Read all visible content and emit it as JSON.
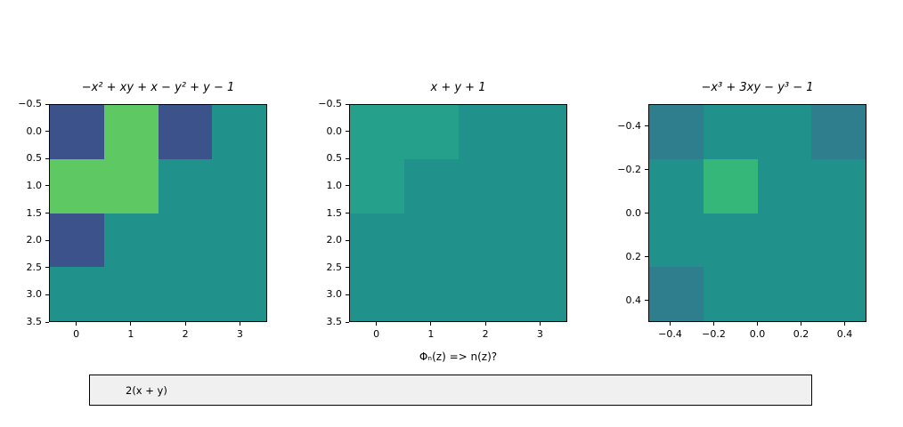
{
  "figure": {
    "background": "#ffffff"
  },
  "colors": {
    "teal": "#21918c",
    "darkblue": "#3b528b",
    "green": "#5ec962",
    "lightteal": "#25a08a",
    "darkteal": "#2e7e8e",
    "midgreen": "#35b779"
  },
  "textbox": {
    "value": "2(x + y)"
  },
  "chart_data": [
    {
      "type": "heatmap",
      "title": "−x² + xy + x − y² + y − 1",
      "xlabel": "",
      "x_range": [
        -0.5,
        3.5
      ],
      "y_range": [
        -0.5,
        3.5
      ],
      "y_axis_inverted": true,
      "grid": [
        [
          "darkblue",
          "green",
          "darkblue",
          "teal"
        ],
        [
          "green",
          "green",
          "teal",
          "teal"
        ],
        [
          "darkblue",
          "teal",
          "teal",
          "teal"
        ],
        [
          "teal",
          "teal",
          "teal",
          "teal"
        ]
      ],
      "x_ticks": [
        {
          "label": "0",
          "pos": 0.125
        },
        {
          "label": "1",
          "pos": 0.375
        },
        {
          "label": "2",
          "pos": 0.625
        },
        {
          "label": "3",
          "pos": 0.875
        }
      ],
      "y_ticks": [
        {
          "label": "−0.5",
          "pos": 0
        },
        {
          "label": "0.0",
          "pos": 0.125
        },
        {
          "label": "0.5",
          "pos": 0.25
        },
        {
          "label": "1.0",
          "pos": 0.375
        },
        {
          "label": "1.5",
          "pos": 0.5
        },
        {
          "label": "2.0",
          "pos": 0.625
        },
        {
          "label": "2.5",
          "pos": 0.75
        },
        {
          "label": "3.0",
          "pos": 0.875
        },
        {
          "label": "3.5",
          "pos": 1
        }
      ]
    },
    {
      "type": "heatmap",
      "title": "x + y + 1",
      "xlabel": "Φₙ(z) => n(z)?",
      "x_range": [
        -0.5,
        3.5
      ],
      "y_range": [
        -0.5,
        3.5
      ],
      "y_axis_inverted": true,
      "grid": [
        [
          "lightteal",
          "lightteal",
          "teal",
          "teal"
        ],
        [
          "lightteal",
          "teal",
          "teal",
          "teal"
        ],
        [
          "teal",
          "teal",
          "teal",
          "teal"
        ],
        [
          "teal",
          "teal",
          "teal",
          "teal"
        ]
      ],
      "x_ticks": [
        {
          "label": "0",
          "pos": 0.125
        },
        {
          "label": "1",
          "pos": 0.375
        },
        {
          "label": "2",
          "pos": 0.625
        },
        {
          "label": "3",
          "pos": 0.875
        }
      ],
      "y_ticks": [
        {
          "label": "−0.5",
          "pos": 0
        },
        {
          "label": "0.0",
          "pos": 0.125
        },
        {
          "label": "0.5",
          "pos": 0.25
        },
        {
          "label": "1.0",
          "pos": 0.375
        },
        {
          "label": "1.5",
          "pos": 0.5
        },
        {
          "label": "2.0",
          "pos": 0.625
        },
        {
          "label": "2.5",
          "pos": 0.75
        },
        {
          "label": "3.0",
          "pos": 0.875
        },
        {
          "label": "3.5",
          "pos": 1
        }
      ]
    },
    {
      "type": "heatmap",
      "title": "−x³ + 3xy − y³ − 1",
      "xlabel": "",
      "x_range": [
        -0.5,
        0.5
      ],
      "y_range": [
        -0.5,
        0.5
      ],
      "y_axis_inverted": true,
      "grid": [
        [
          "darkteal",
          "teal",
          "teal",
          "darkteal"
        ],
        [
          "teal",
          "midgreen",
          "teal",
          "teal"
        ],
        [
          "teal",
          "teal",
          "teal",
          "teal"
        ],
        [
          "darkteal",
          "teal",
          "teal",
          "teal"
        ]
      ],
      "x_ticks": [
        {
          "label": "−0.4",
          "pos": 0.1
        },
        {
          "label": "−0.2",
          "pos": 0.3
        },
        {
          "label": "0.0",
          "pos": 0.5
        },
        {
          "label": "0.2",
          "pos": 0.7
        },
        {
          "label": "0.4",
          "pos": 0.9
        }
      ],
      "y_ticks": [
        {
          "label": "−0.4",
          "pos": 0.1
        },
        {
          "label": "−0.2",
          "pos": 0.3
        },
        {
          "label": "0.0",
          "pos": 0.5
        },
        {
          "label": "0.2",
          "pos": 0.7
        },
        {
          "label": "0.4",
          "pos": 0.9
        }
      ]
    }
  ]
}
